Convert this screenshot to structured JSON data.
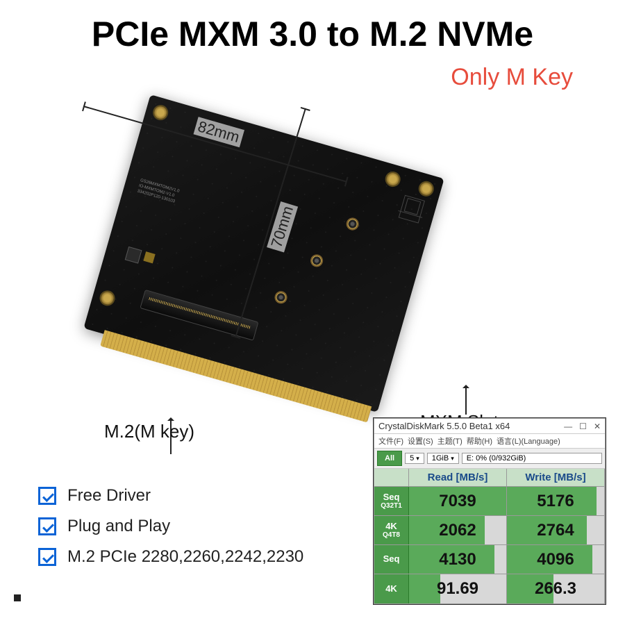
{
  "title": "PCIe MXM 3.0 to M.2 NVMe",
  "subtitle": "Only M Key",
  "subtitle_color": "#e74c3c",
  "dimensions": {
    "width_label": "82mm",
    "height_label": "70mm"
  },
  "callouts": {
    "m2": "M.2(M key)",
    "mxm": "MXM Slot"
  },
  "features": {
    "items": [
      "Free Driver",
      "Plug and Play",
      "M.2 PCIe 2280,2260,2242,2230"
    ],
    "check_color": "#0b63d6"
  },
  "benchmark": {
    "window_title": "CrystalDiskMark 5.5.0 Beta1 x64",
    "menu": [
      "文件(F)",
      "设置(S)",
      "主题(T)",
      "帮助(H)",
      "语言(L)(Language)"
    ],
    "all_button": "All",
    "dropdowns": [
      "5",
      "1GiB"
    ],
    "drive_info": "E: 0% (0/932GiB)",
    "columns": [
      "Read [MB/s]",
      "Write [MB/s]"
    ],
    "rows": [
      {
        "label_top": "Seq",
        "label_bot": "Q32T1",
        "read": "7039",
        "read_pct": 100,
        "write": "5176",
        "write_pct": 92
      },
      {
        "label_top": "4K",
        "label_bot": "Q4T8",
        "read": "2062",
        "read_pct": 78,
        "write": "2764",
        "write_pct": 82
      },
      {
        "label_top": "Seq",
        "label_bot": "",
        "read": "4130",
        "read_pct": 88,
        "write": "4096",
        "write_pct": 88
      },
      {
        "label_top": "4K",
        "label_bot": "",
        "read": "91.69",
        "read_pct": 32,
        "write": "266.3",
        "write_pct": 48
      }
    ],
    "header_bg": "#c8e0c8",
    "bar_color": "#5aaa5a",
    "button_color": "#4a9a4a"
  }
}
